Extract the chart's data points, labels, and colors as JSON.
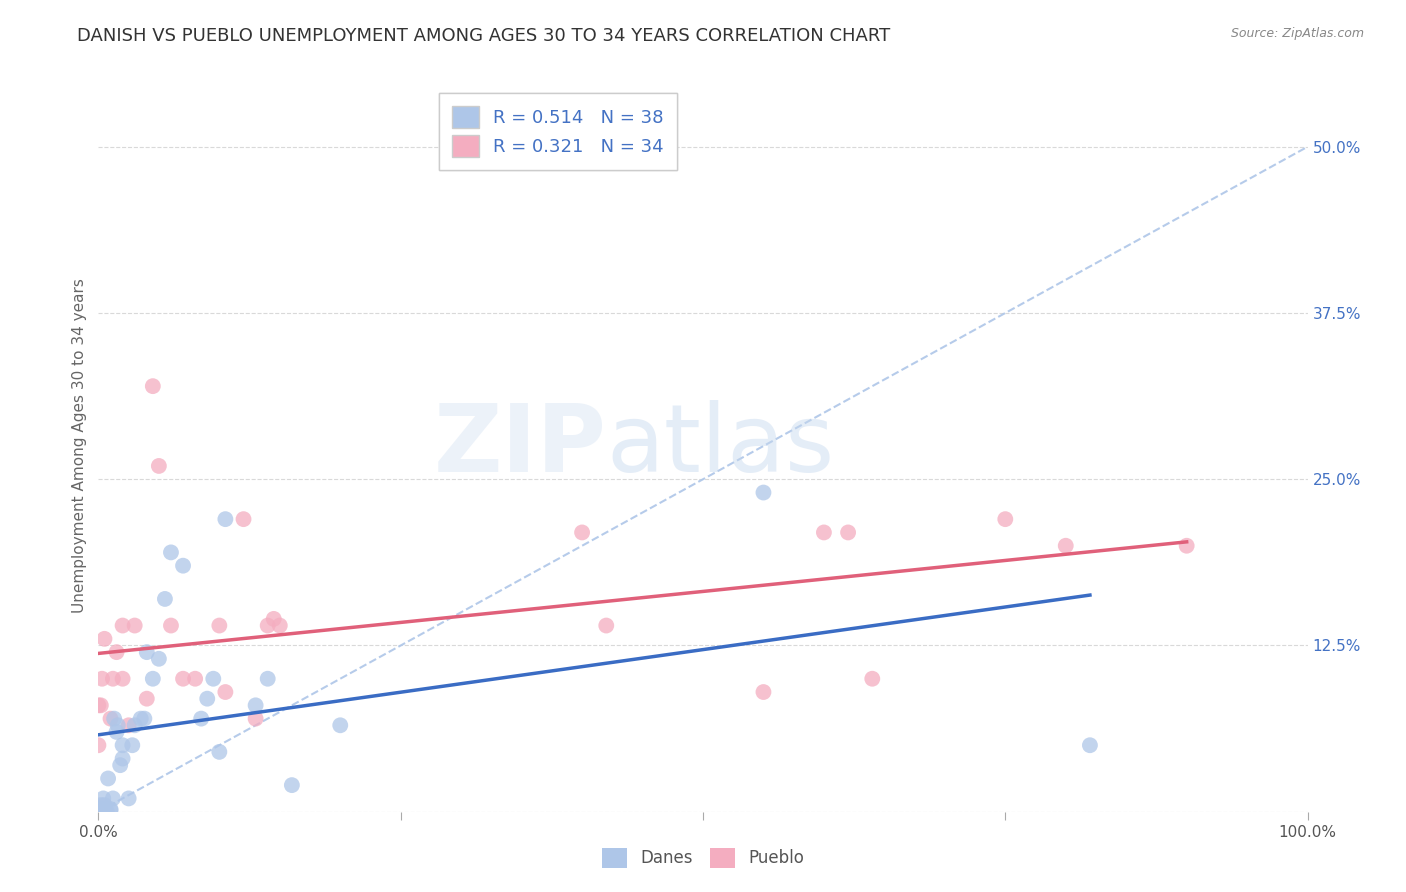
{
  "title": "DANISH VS PUEBLO UNEMPLOYMENT AMONG AGES 30 TO 34 YEARS CORRELATION CHART",
  "source": "Source: ZipAtlas.com",
  "ylabel": "Unemployment Among Ages 30 to 34 years",
  "xlim": [
    0,
    100
  ],
  "ylim": [
    0,
    55
  ],
  "xticks": [
    0,
    25,
    50,
    75,
    100
  ],
  "xtick_labels": [
    "0.0%",
    "",
    "",
    "",
    "100.0%"
  ],
  "yticks": [
    0,
    12.5,
    25.0,
    37.5,
    50.0
  ],
  "ytick_labels": [
    "",
    "12.5%",
    "25.0%",
    "37.5%",
    "50.0%"
  ],
  "danes_R": 0.514,
  "danes_N": 38,
  "pueblo_R": 0.321,
  "pueblo_N": 34,
  "danes_color": "#aec6e8",
  "danes_line_color": "#3a6cc4",
  "pueblo_color": "#f4adc0",
  "pueblo_line_color": "#e0607a",
  "danes_x": [
    0.0,
    0.2,
    0.4,
    0.5,
    0.5,
    0.7,
    0.8,
    1.0,
    1.0,
    1.2,
    1.3,
    1.5,
    1.6,
    1.8,
    2.0,
    2.0,
    2.5,
    2.8,
    3.0,
    3.5,
    3.8,
    4.0,
    4.5,
    5.0,
    5.5,
    6.0,
    7.0,
    8.5,
    9.0,
    9.5,
    10.0,
    10.5,
    13.0,
    14.0,
    16.0,
    20.0,
    55.0,
    82.0
  ],
  "danes_y": [
    0.2,
    0.5,
    1.0,
    0.5,
    0.2,
    0.0,
    2.5,
    0.1,
    0.2,
    1.0,
    7.0,
    6.0,
    6.5,
    3.5,
    4.0,
    5.0,
    1.0,
    5.0,
    6.5,
    7.0,
    7.0,
    12.0,
    10.0,
    11.5,
    16.0,
    19.5,
    18.5,
    7.0,
    8.5,
    10.0,
    4.5,
    22.0,
    8.0,
    10.0,
    2.0,
    6.5,
    24.0,
    5.0
  ],
  "pueblo_x": [
    0.0,
    0.0,
    0.2,
    0.3,
    0.5,
    1.0,
    1.2,
    1.5,
    2.0,
    2.0,
    2.5,
    3.0,
    4.0,
    4.5,
    5.0,
    6.0,
    7.0,
    8.0,
    10.0,
    10.5,
    12.0,
    13.0,
    14.0,
    14.5,
    15.0,
    40.0,
    42.0,
    55.0,
    60.0,
    62.0,
    64.0,
    75.0,
    80.0,
    90.0
  ],
  "pueblo_y": [
    5.0,
    8.0,
    8.0,
    10.0,
    13.0,
    7.0,
    10.0,
    12.0,
    14.0,
    10.0,
    6.5,
    14.0,
    8.5,
    32.0,
    26.0,
    14.0,
    10.0,
    10.0,
    14.0,
    9.0,
    22.0,
    7.0,
    14.0,
    14.5,
    14.0,
    21.0,
    14.0,
    9.0,
    21.0,
    21.0,
    10.0,
    22.0,
    20.0,
    20.0
  ],
  "diag_line_color": "#aec6e8",
  "background_color": "#ffffff",
  "title_fontsize": 13,
  "axis_label_fontsize": 11,
  "tick_fontsize": 11,
  "marker_size": 130,
  "watermark_zip": "ZIP",
  "watermark_atlas": "atlas"
}
